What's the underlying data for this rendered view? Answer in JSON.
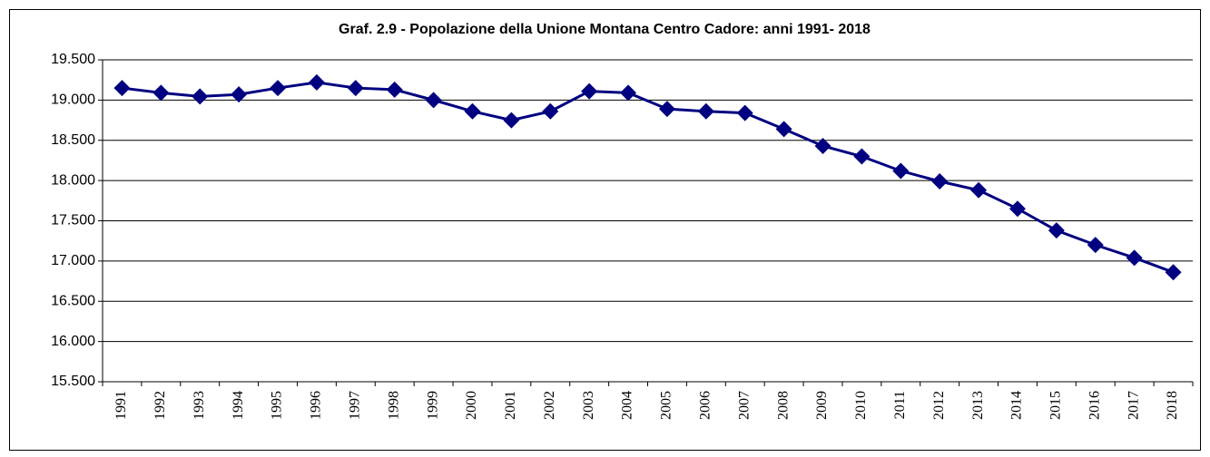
{
  "chart_data": {
    "type": "line",
    "title": "Graf. 2.9 - Popolazione della Unione Montana Centro Cadore: anni 1991- 2018",
    "categories": [
      "1991",
      "1992",
      "1993",
      "1994",
      "1995",
      "1996",
      "1997",
      "1998",
      "1999",
      "2000",
      "2001",
      "2002",
      "2003",
      "2004",
      "2005",
      "2006",
      "2007",
      "2008",
      "2009",
      "2010",
      "2011",
      "2012",
      "2013",
      "2014",
      "2015",
      "2016",
      "2017",
      "2018"
    ],
    "series": [
      {
        "name": "Popolazione",
        "color": "#000080",
        "values": [
          19150,
          19090,
          19045,
          19070,
          19150,
          19220,
          19150,
          19130,
          19000,
          18860,
          18750,
          18860,
          19110,
          19090,
          18890,
          18860,
          18840,
          18640,
          18430,
          18300,
          18120,
          17990,
          17880,
          17650,
          17380,
          17200,
          17040,
          16860
        ]
      }
    ],
    "ylim": [
      15500,
      19500
    ],
    "yticks": [
      {
        "value": 15500,
        "label": "15.500"
      },
      {
        "value": 16000,
        "label": "16.000"
      },
      {
        "value": 16500,
        "label": "16.500"
      },
      {
        "value": 17000,
        "label": "17.000"
      },
      {
        "value": 17500,
        "label": "17.500"
      },
      {
        "value": 18000,
        "label": "18.000"
      },
      {
        "value": 18500,
        "label": "18.500"
      },
      {
        "value": 19000,
        "label": "19.000"
      },
      {
        "value": 19500,
        "label": "19.500"
      }
    ],
    "grid": true
  }
}
